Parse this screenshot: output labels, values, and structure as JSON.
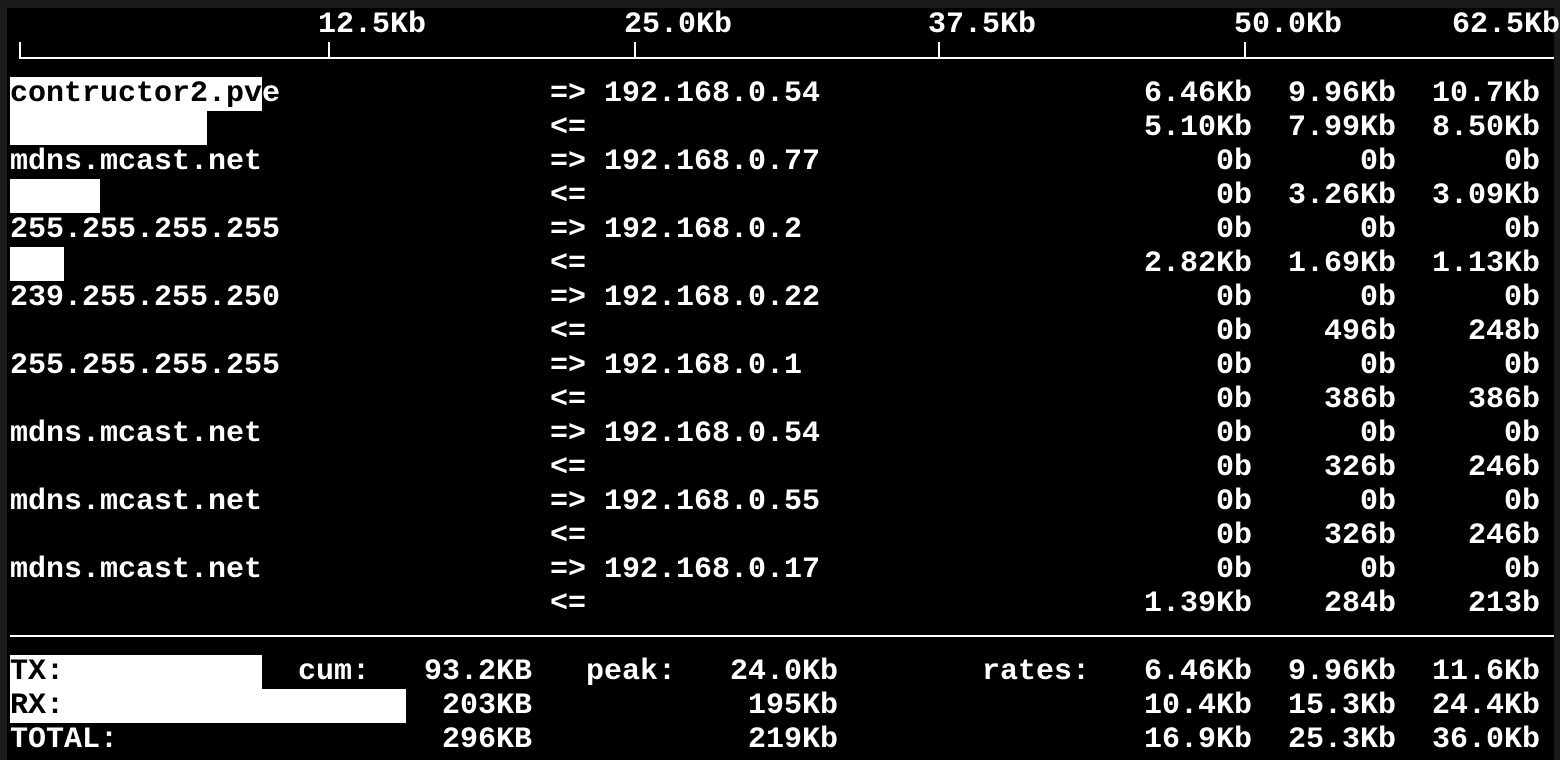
{
  "scale": {
    "labels": [
      "12.5Kb",
      "25.0Kb",
      "37.5Kb",
      "50.0Kb",
      "62.5Kb"
    ],
    "max": "62.5Kb"
  },
  "colors": {
    "background": "#000000",
    "text": "#ffffff",
    "bar": "#ffffff"
  },
  "flows": [
    {
      "host": "contructor2.pve",
      "peer": "192.168.0.54",
      "out": {
        "arrow": "=>",
        "r2": "6.46Kb",
        "r10": "9.96Kb",
        "r40": "10.7Kb",
        "bar_fraction": 0.165
      },
      "in": {
        "arrow": "<=",
        "r2": "5.10Kb",
        "r10": "7.99Kb",
        "r40": "8.50Kb",
        "bar_fraction": 0.129
      }
    },
    {
      "host": "mdns.mcast.net",
      "peer": "192.168.0.77",
      "out": {
        "arrow": "=>",
        "r2": "0b",
        "r10": "0b",
        "r40": "0b",
        "bar_fraction": 0
      },
      "in": {
        "arrow": "<=",
        "r2": "0b",
        "r10": "3.26Kb",
        "r40": "3.09Kb",
        "bar_fraction": 0.059
      }
    },
    {
      "host": "255.255.255.255",
      "peer": "192.168.0.2",
      "out": {
        "arrow": "=>",
        "r2": "0b",
        "r10": "0b",
        "r40": "0b",
        "bar_fraction": 0
      },
      "in": {
        "arrow": "<=",
        "r2": "2.82Kb",
        "r10": "1.69Kb",
        "r40": "1.13Kb",
        "bar_fraction": 0.035
      }
    },
    {
      "host": "239.255.255.250",
      "peer": "192.168.0.22",
      "out": {
        "arrow": "=>",
        "r2": "0b",
        "r10": "0b",
        "r40": "0b",
        "bar_fraction": 0
      },
      "in": {
        "arrow": "<=",
        "r2": "0b",
        "r10": "496b",
        "r40": "248b",
        "bar_fraction": 0
      }
    },
    {
      "host": "255.255.255.255",
      "peer": "192.168.0.1",
      "out": {
        "arrow": "=>",
        "r2": "0b",
        "r10": "0b",
        "r40": "0b",
        "bar_fraction": 0
      },
      "in": {
        "arrow": "<=",
        "r2": "0b",
        "r10": "386b",
        "r40": "386b",
        "bar_fraction": 0
      }
    },
    {
      "host": "mdns.mcast.net",
      "peer": "192.168.0.54",
      "out": {
        "arrow": "=>",
        "r2": "0b",
        "r10": "0b",
        "r40": "0b",
        "bar_fraction": 0
      },
      "in": {
        "arrow": "<=",
        "r2": "0b",
        "r10": "326b",
        "r40": "246b",
        "bar_fraction": 0
      }
    },
    {
      "host": "mdns.mcast.net",
      "peer": "192.168.0.55",
      "out": {
        "arrow": "=>",
        "r2": "0b",
        "r10": "0b",
        "r40": "0b",
        "bar_fraction": 0
      },
      "in": {
        "arrow": "<=",
        "r2": "0b",
        "r10": "326b",
        "r40": "246b",
        "bar_fraction": 0
      }
    },
    {
      "host": "mdns.mcast.net",
      "peer": "192.168.0.17",
      "out": {
        "arrow": "=>",
        "r2": "0b",
        "r10": "0b",
        "r40": "0b",
        "bar_fraction": 0
      },
      "in": {
        "arrow": "<=",
        "r2": "1.39Kb",
        "r10": "284b",
        "r40": "213b",
        "bar_fraction": 0
      }
    }
  ],
  "totals": {
    "cum_label": "cum:",
    "peak_label": "peak:",
    "rates_label": "rates:",
    "rows": [
      {
        "label": "TX:",
        "cum": "93.2KB",
        "peak": "24.0Kb",
        "r2": "6.46Kb",
        "r10": "9.96Kb",
        "r40": "11.6Kb",
        "bar_fraction": 0.165
      },
      {
        "label": "RX:",
        "cum": "203KB",
        "peak": "195Kb",
        "r2": "10.4Kb",
        "r10": "15.3Kb",
        "r40": "24.4Kb",
        "bar_fraction": 0.259
      },
      {
        "label": "TOTAL:",
        "cum": "296KB",
        "peak": "219Kb",
        "r2": "16.9Kb",
        "r10": "25.3Kb",
        "r40": "36.0Kb",
        "bar_fraction": 0
      }
    ]
  }
}
